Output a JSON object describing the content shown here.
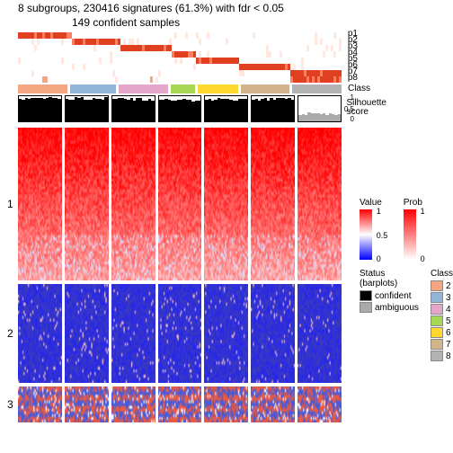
{
  "title_line1": "8 subgroups, 230416 signatures (61.3%) with fdr < 0.05",
  "title_line2": "149 confident samples",
  "prob_rows": [
    "p1",
    "p2",
    "p3",
    "p4",
    "p5",
    "p6",
    "p7",
    "p8"
  ],
  "class_label": "Class",
  "silhouette_label": "Silhouette\nscore",
  "sil_axis": [
    "1",
    "0.5",
    "0"
  ],
  "class_colors": [
    "#f4a582",
    "#92b5d8",
    "#e4a6c9",
    "#a6d854",
    "#ffd92f",
    "#d2b48c",
    "#b3b3b3"
  ],
  "class_widths": [
    16,
    15,
    16,
    8,
    13,
    16,
    16
  ],
  "silhouette_heights": [
    0.92,
    0.9,
    0.88,
    0.85,
    0.87,
    0.89,
    0.3
  ],
  "silhouette_colors": [
    "#000",
    "#000",
    "#000",
    "#000",
    "#000",
    "#000",
    "#aaa"
  ],
  "heatmap_sections": [
    {
      "label": "1",
      "height": 170,
      "pattern": "red"
    },
    {
      "label": "2",
      "height": 110,
      "pattern": "blue"
    },
    {
      "label": "3",
      "height": 40,
      "pattern": "mixed"
    }
  ],
  "value_legend": {
    "title": "Value",
    "gradient": [
      "#ff0000",
      "#ffffff",
      "#0000ff"
    ],
    "ticks": [
      "1",
      "0.5",
      "0"
    ]
  },
  "prob_legend": {
    "title": "Prob",
    "gradient": [
      "#ff0000",
      "#ffffff"
    ],
    "ticks": [
      "1",
      "0"
    ]
  },
  "status_legend": {
    "title": "Status (barplots)",
    "items": [
      {
        "label": "confident",
        "color": "#000000"
      },
      {
        "label": "ambiguous",
        "color": "#aaaaaa"
      }
    ]
  },
  "class_legend": {
    "title": "Class",
    "items": [
      {
        "label": "2",
        "color": "#f4a582"
      },
      {
        "label": "3",
        "color": "#92b5d8"
      },
      {
        "label": "4",
        "color": "#e4a6c9"
      },
      {
        "label": "5",
        "color": "#a6d854"
      },
      {
        "label": "6",
        "color": "#ffd92f"
      },
      {
        "label": "7",
        "color": "#d2b48c"
      },
      {
        "label": "8",
        "color": "#b3b3b3"
      }
    ]
  },
  "panel_count": 7,
  "colors": {
    "red_hi": "#e04020",
    "red_lo": "#ffe8e0",
    "blue_hi": "#2020c0",
    "blue_lo": "#c0c0ff",
    "white": "#ffffff"
  }
}
